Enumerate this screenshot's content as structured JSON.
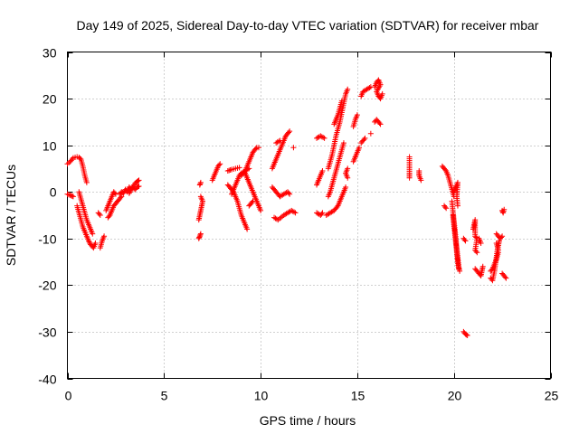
{
  "chart_data": {
    "type": "scatter",
    "title": "Day 149 of 2025, Sidereal Day-to-day VTEC variation (SDTVAR) for receiver mbar",
    "xlabel": "GPS time / hours",
    "ylabel": "SDTVAR / TECUs",
    "xlim": [
      0,
      25
    ],
    "ylim": [
      -40,
      30
    ],
    "xticks": [
      0,
      5,
      10,
      15,
      20,
      25
    ],
    "yticks": [
      -40,
      -30,
      -20,
      -10,
      0,
      10,
      20,
      30
    ],
    "grid": true,
    "marker": "+",
    "color": "#ff0000",
    "segments": [
      [
        [
          0.0,
          6.0
        ],
        [
          0.15,
          6.5
        ],
        [
          0.3,
          7.3
        ],
        [
          0.5,
          7.5
        ],
        [
          0.6,
          7.4
        ],
        [
          0.7,
          7.0
        ],
        [
          0.8,
          5.5
        ],
        [
          0.9,
          3.5
        ],
        [
          1.0,
          2.0
        ]
      ],
      [
        [
          0.0,
          -0.5
        ],
        [
          0.2,
          -0.8
        ],
        [
          0.3,
          -1.0
        ]
      ],
      [
        [
          0.5,
          -3.0
        ],
        [
          0.6,
          -4.5
        ],
        [
          0.7,
          -6.0
        ],
        [
          0.8,
          -7.5
        ],
        [
          0.9,
          -8.5
        ],
        [
          1.0,
          -9.5
        ],
        [
          1.1,
          -10.5
        ],
        [
          1.2,
          -11.3
        ],
        [
          1.35,
          -12.0
        ],
        [
          1.45,
          -11.0
        ]
      ],
      [
        [
          0.6,
          0.0
        ],
        [
          0.7,
          -1.5
        ],
        [
          0.8,
          -3.0
        ],
        [
          0.9,
          -4.5
        ],
        [
          1.0,
          -6.0
        ],
        [
          1.1,
          -7.0
        ],
        [
          1.2,
          -8.0
        ],
        [
          1.3,
          -9.0
        ]
      ],
      [
        [
          1.7,
          -12.0
        ],
        [
          1.8,
          -10.5
        ],
        [
          1.9,
          -9.5
        ]
      ],
      [
        [
          1.6,
          -4.5
        ],
        [
          1.7,
          -5.0
        ]
      ],
      [
        [
          2.0,
          -4.0
        ],
        [
          2.1,
          -3.0
        ],
        [
          2.2,
          -2.0
        ],
        [
          2.3,
          -1.0
        ],
        [
          2.4,
          0.0
        ],
        [
          2.5,
          -0.5
        ]
      ],
      [
        [
          2.1,
          -5.5
        ],
        [
          2.2,
          -5.0
        ],
        [
          2.3,
          -4.0
        ],
        [
          2.4,
          -3.0
        ],
        [
          2.5,
          -2.5
        ],
        [
          2.6,
          -2.0
        ],
        [
          2.7,
          -1.5
        ],
        [
          2.8,
          -1.0
        ]
      ],
      [
        [
          2.7,
          -0.5
        ],
        [
          2.8,
          0.0
        ],
        [
          2.9,
          -0.3
        ],
        [
          3.0,
          0.5
        ],
        [
          3.1,
          0.0
        ],
        [
          3.2,
          1.0
        ],
        [
          3.3,
          0.5
        ],
        [
          3.4,
          1.0
        ],
        [
          3.5,
          0.5
        ],
        [
          3.6,
          1.0
        ],
        [
          3.7,
          1.2
        ]
      ],
      [
        [
          3.2,
          -0.3
        ],
        [
          3.3,
          0.5
        ],
        [
          3.4,
          1.2
        ],
        [
          3.5,
          1.8
        ],
        [
          3.6,
          2.2
        ],
        [
          3.7,
          2.5
        ]
      ],
      [
        [
          6.8,
          -10.0
        ],
        [
          6.85,
          -9.5
        ],
        [
          6.9,
          -9.0
        ]
      ],
      [
        [
          6.8,
          -6.0
        ],
        [
          6.85,
          -5.0
        ],
        [
          6.9,
          -4.0
        ],
        [
          6.95,
          -3.0
        ],
        [
          7.0,
          -2.0
        ],
        [
          6.9,
          -1.0
        ]
      ],
      [
        [
          6.85,
          1.5
        ],
        [
          6.9,
          2.0
        ]
      ],
      [
        [
          7.5,
          2.5
        ],
        [
          7.6,
          3.5
        ],
        [
          7.7,
          4.5
        ],
        [
          7.8,
          5.5
        ],
        [
          7.9,
          6.0
        ]
      ],
      [
        [
          8.3,
          4.5
        ],
        [
          8.5,
          4.8
        ],
        [
          8.7,
          5.0
        ],
        [
          8.9,
          5.2
        ]
      ],
      [
        [
          8.5,
          -0.5
        ],
        [
          8.6,
          0.5
        ],
        [
          8.7,
          1.5
        ],
        [
          8.8,
          2.5
        ],
        [
          8.9,
          3.5
        ],
        [
          9.0,
          4.0
        ],
        [
          9.2,
          4.5
        ],
        [
          9.4,
          5.0
        ]
      ],
      [
        [
          8.3,
          1.5
        ],
        [
          8.4,
          1.0
        ],
        [
          8.5,
          0.5
        ],
        [
          8.6,
          0.0
        ],
        [
          8.7,
          -1.0
        ],
        [
          8.8,
          -2.0
        ],
        [
          8.9,
          -3.5
        ],
        [
          9.0,
          -5.0
        ],
        [
          9.1,
          -6.0
        ],
        [
          9.2,
          -7.0
        ],
        [
          9.3,
          -8.0
        ]
      ],
      [
        [
          9.0,
          3.5
        ],
        [
          9.1,
          4.0
        ],
        [
          9.2,
          4.5
        ],
        [
          9.3,
          5.5
        ],
        [
          9.4,
          6.5
        ],
        [
          9.5,
          7.5
        ],
        [
          9.6,
          8.5
        ],
        [
          9.7,
          9.0
        ],
        [
          9.8,
          9.5
        ],
        [
          9.9,
          9.5
        ]
      ],
      [
        [
          9.2,
          4.0
        ],
        [
          9.3,
          3.0
        ],
        [
          9.4,
          2.0
        ],
        [
          9.5,
          1.0
        ],
        [
          9.6,
          0.0
        ],
        [
          9.7,
          -1.0
        ],
        [
          9.8,
          -2.0
        ],
        [
          9.9,
          -3.0
        ],
        [
          10.0,
          -4.0
        ]
      ],
      [
        [
          9.4,
          -3.0
        ],
        [
          9.5,
          -2.5
        ],
        [
          9.6,
          -2.0
        ]
      ],
      [
        [
          10.6,
          5.0
        ],
        [
          10.7,
          6.0
        ],
        [
          10.8,
          7.0
        ],
        [
          10.9,
          8.0
        ],
        [
          11.0,
          9.0
        ],
        [
          11.1,
          10.0
        ],
        [
          11.2,
          11.0
        ],
        [
          11.3,
          12.0
        ],
        [
          11.4,
          12.5
        ],
        [
          11.5,
          13.0
        ]
      ],
      [
        [
          10.6,
          1.0
        ],
        [
          10.7,
          0.5
        ],
        [
          10.8,
          0.0
        ],
        [
          10.9,
          -0.5
        ],
        [
          11.0,
          -1.0
        ],
        [
          11.2,
          -0.5
        ],
        [
          11.4,
          0.0
        ],
        [
          11.5,
          -0.5
        ]
      ],
      [
        [
          10.7,
          -5.5
        ],
        [
          10.9,
          -6.0
        ],
        [
          11.2,
          -5.0
        ],
        [
          11.4,
          -4.5
        ],
        [
          11.6,
          -4.0
        ],
        [
          11.8,
          -4.5
        ]
      ],
      [
        [
          11.7,
          9.5
        ]
      ],
      [
        [
          10.8,
          10.5
        ],
        [
          11.0,
          11.0
        ]
      ],
      [
        [
          12.9,
          -4.5
        ],
        [
          13.1,
          -5.0
        ],
        [
          13.2,
          -4.5
        ]
      ],
      [
        [
          12.9,
          1.5
        ],
        [
          13.0,
          2.5
        ],
        [
          13.1,
          3.5
        ],
        [
          13.2,
          4.5
        ]
      ],
      [
        [
          12.9,
          11.5
        ],
        [
          13.1,
          12.0
        ],
        [
          13.3,
          11.5
        ]
      ],
      [
        [
          13.5,
          -1.0
        ],
        [
          13.6,
          0.0
        ],
        [
          13.7,
          1.5
        ],
        [
          13.8,
          3.0
        ],
        [
          13.9,
          4.5
        ],
        [
          14.0,
          6.0
        ],
        [
          14.1,
          7.5
        ],
        [
          14.2,
          9.0
        ],
        [
          14.3,
          10.5
        ]
      ],
      [
        [
          13.4,
          -5.0
        ],
        [
          13.6,
          -4.5
        ],
        [
          13.8,
          -4.0
        ],
        [
          13.9,
          -3.5
        ],
        [
          14.0,
          -3.0
        ],
        [
          14.1,
          -2.0
        ],
        [
          14.2,
          -1.0
        ],
        [
          14.3,
          0.0
        ],
        [
          14.4,
          1.0
        ]
      ],
      [
        [
          13.5,
          5.0
        ],
        [
          13.6,
          6.5
        ],
        [
          13.7,
          8.0
        ],
        [
          13.8,
          10.0
        ],
        [
          13.9,
          12.0
        ],
        [
          14.0,
          13.5
        ],
        [
          14.1,
          15.0
        ],
        [
          14.2,
          17.0
        ],
        [
          14.3,
          19.0
        ],
        [
          14.4,
          21.0
        ],
        [
          14.5,
          22.0
        ]
      ],
      [
        [
          13.8,
          14.5
        ],
        [
          13.9,
          15.5
        ],
        [
          14.0,
          16.5
        ],
        [
          14.1,
          18.0
        ],
        [
          14.2,
          19.5
        ]
      ],
      [
        [
          14.5,
          5.0
        ],
        [
          14.4,
          4.0
        ],
        [
          14.5,
          3.0
        ]
      ],
      [
        [
          14.8,
          6.5
        ],
        [
          14.9,
          7.5
        ],
        [
          15.0,
          8.5
        ],
        [
          15.1,
          9.5
        ]
      ],
      [
        [
          14.8,
          14.0
        ],
        [
          14.9,
          15.5
        ],
        [
          15.0,
          16.5
        ]
      ],
      [
        [
          15.2,
          10.5
        ],
        [
          15.3,
          11.0
        ],
        [
          15.4,
          11.5
        ]
      ],
      [
        [
          15.2,
          20.5
        ],
        [
          15.3,
          21.5
        ],
        [
          15.5,
          22.0
        ],
        [
          15.7,
          22.5
        ]
      ],
      [
        [
          15.7,
          12.5
        ]
      ],
      [
        [
          15.9,
          15.0
        ],
        [
          16.0,
          15.5
        ],
        [
          16.1,
          15.0
        ],
        [
          16.2,
          14.5
        ]
      ],
      [
        [
          15.9,
          22.5
        ],
        [
          16.0,
          23.5
        ],
        [
          16.1,
          24.0
        ],
        [
          16.2,
          23.0
        ],
        [
          16.0,
          21.5
        ],
        [
          16.1,
          20.5
        ],
        [
          16.2,
          20.0
        ],
        [
          16.3,
          21.0
        ]
      ],
      [
        [
          17.7,
          7.5
        ],
        [
          17.7,
          5.5
        ],
        [
          17.7,
          4.0
        ],
        [
          17.7,
          3.0
        ]
      ],
      [
        [
          18.2,
          4.5
        ],
        [
          18.2,
          3.5
        ],
        [
          18.3,
          2.5
        ]
      ],
      [
        [
          19.4,
          5.5
        ],
        [
          19.5,
          5.0
        ],
        [
          19.6,
          4.5
        ],
        [
          19.7,
          3.5
        ],
        [
          19.8,
          2.0
        ],
        [
          19.9,
          0.5
        ],
        [
          20.0,
          -1.0
        ]
      ],
      [
        [
          19.5,
          -3.0
        ],
        [
          19.6,
          -3.5
        ]
      ],
      [
        [
          19.9,
          -2.0
        ],
        [
          19.95,
          -4.0
        ],
        [
          20.0,
          -6.0
        ],
        [
          20.05,
          -8.0
        ],
        [
          20.1,
          -10.0
        ],
        [
          20.15,
          -12.0
        ],
        [
          20.2,
          -14.0
        ],
        [
          20.25,
          -16.0
        ],
        [
          20.3,
          -17.0
        ]
      ],
      [
        [
          19.95,
          -5.0
        ],
        [
          20.0,
          -7.0
        ],
        [
          20.05,
          -9.0
        ],
        [
          20.1,
          -11.0
        ],
        [
          20.15,
          -13.0
        ],
        [
          20.2,
          -15.0
        ],
        [
          20.25,
          -16.5
        ]
      ],
      [
        [
          20.0,
          0.0
        ],
        [
          20.1,
          1.0
        ],
        [
          20.2,
          2.0
        ],
        [
          20.15,
          -1.0
        ],
        [
          20.2,
          -3.0
        ]
      ],
      [
        [
          20.5,
          -10.0
        ],
        [
          20.6,
          -10.5
        ]
      ],
      [
        [
          20.5,
          -30.0
        ],
        [
          20.6,
          -30.5
        ],
        [
          20.7,
          -30.8
        ]
      ],
      [
        [
          21.0,
          -8.0
        ],
        [
          21.05,
          -7.0
        ],
        [
          21.1,
          -6.0
        ],
        [
          21.1,
          -9.5
        ],
        [
          21.2,
          -10.0
        ],
        [
          21.1,
          -12.5
        ],
        [
          21.2,
          -13.0
        ]
      ],
      [
        [
          21.1,
          -16.5
        ],
        [
          21.2,
          -17.0
        ],
        [
          21.3,
          -17.5
        ],
        [
          21.4,
          -18.0
        ],
        [
          21.45,
          -17.0
        ],
        [
          21.5,
          -16.0
        ]
      ],
      [
        [
          21.3,
          -10.0
        ],
        [
          21.4,
          -11.0
        ]
      ],
      [
        [
          21.9,
          -18.5
        ],
        [
          22.0,
          -19.0
        ],
        [
          22.1,
          -17.0
        ],
        [
          22.15,
          -15.5
        ],
        [
          22.2,
          -14.0
        ],
        [
          22.25,
          -12.5
        ],
        [
          22.3,
          -11.5
        ],
        [
          22.35,
          -10.5
        ]
      ],
      [
        [
          21.9,
          -17.0
        ],
        [
          22.0,
          -16.5
        ],
        [
          22.1,
          -15.5
        ],
        [
          22.2,
          -14.5
        ],
        [
          22.3,
          -13.0
        ]
      ],
      [
        [
          22.2,
          -9.0
        ],
        [
          22.3,
          -9.5
        ],
        [
          22.4,
          -10.0
        ],
        [
          22.5,
          -9.5
        ]
      ],
      [
        [
          22.3,
          -12.5
        ],
        [
          22.2,
          -11.0
        ]
      ],
      [
        [
          22.5,
          -4.0
        ],
        [
          22.55,
          -4.5
        ],
        [
          22.6,
          -3.8
        ]
      ],
      [
        [
          22.5,
          -17.5
        ],
        [
          22.6,
          -18.0
        ],
        [
          22.7,
          -18.5
        ]
      ]
    ]
  }
}
